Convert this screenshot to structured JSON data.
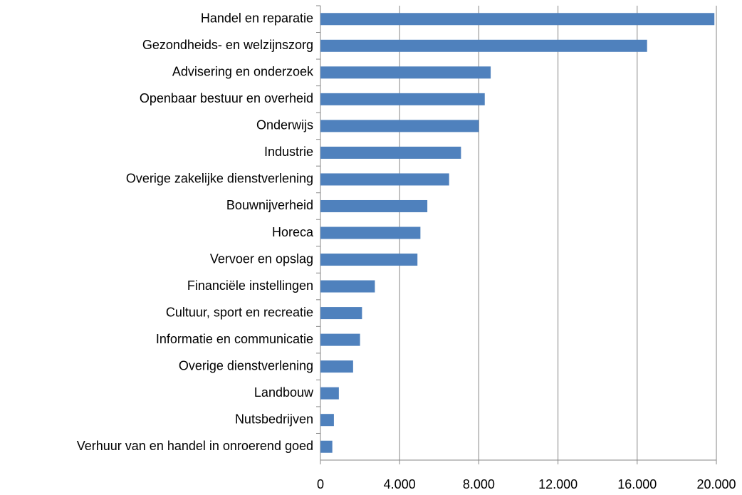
{
  "chart_data": {
    "type": "barh",
    "categories": [
      "Handel en reparatie",
      "Gezondheids- en welzijnszorg",
      "Advisering en onderzoek",
      "Openbaar bestuur en overheid",
      "Onderwijs",
      "Industrie",
      "Overige zakelijke dienstverlening",
      "Bouwnijverheid",
      "Horeca",
      "Vervoer en opslag",
      "Financiële instellingen",
      "Cultuur, sport en recreatie",
      "Informatie en communicatie",
      "Overige dienstverlening",
      "Landbouw",
      "Nutsbedrijven",
      "Verhuur van en handel in onroerend goed"
    ],
    "values": [
      19900,
      16500,
      8600,
      8300,
      8000,
      7100,
      6500,
      5400,
      5050,
      4900,
      2750,
      2100,
      2000,
      1650,
      930,
      680,
      600
    ],
    "color": "#4f81bd",
    "xlim": [
      0,
      20000
    ],
    "xticks": [
      0,
      {
        "value": 4000,
        "label": "4.000"
      },
      {
        "value": 8000,
        "label": "8.000"
      },
      {
        "value": 12000,
        "label": "12.000"
      },
      {
        "value": 16000,
        "label": "16.000"
      },
      {
        "value": 20000,
        "label": "20.000"
      }
    ],
    "grid": true
  }
}
